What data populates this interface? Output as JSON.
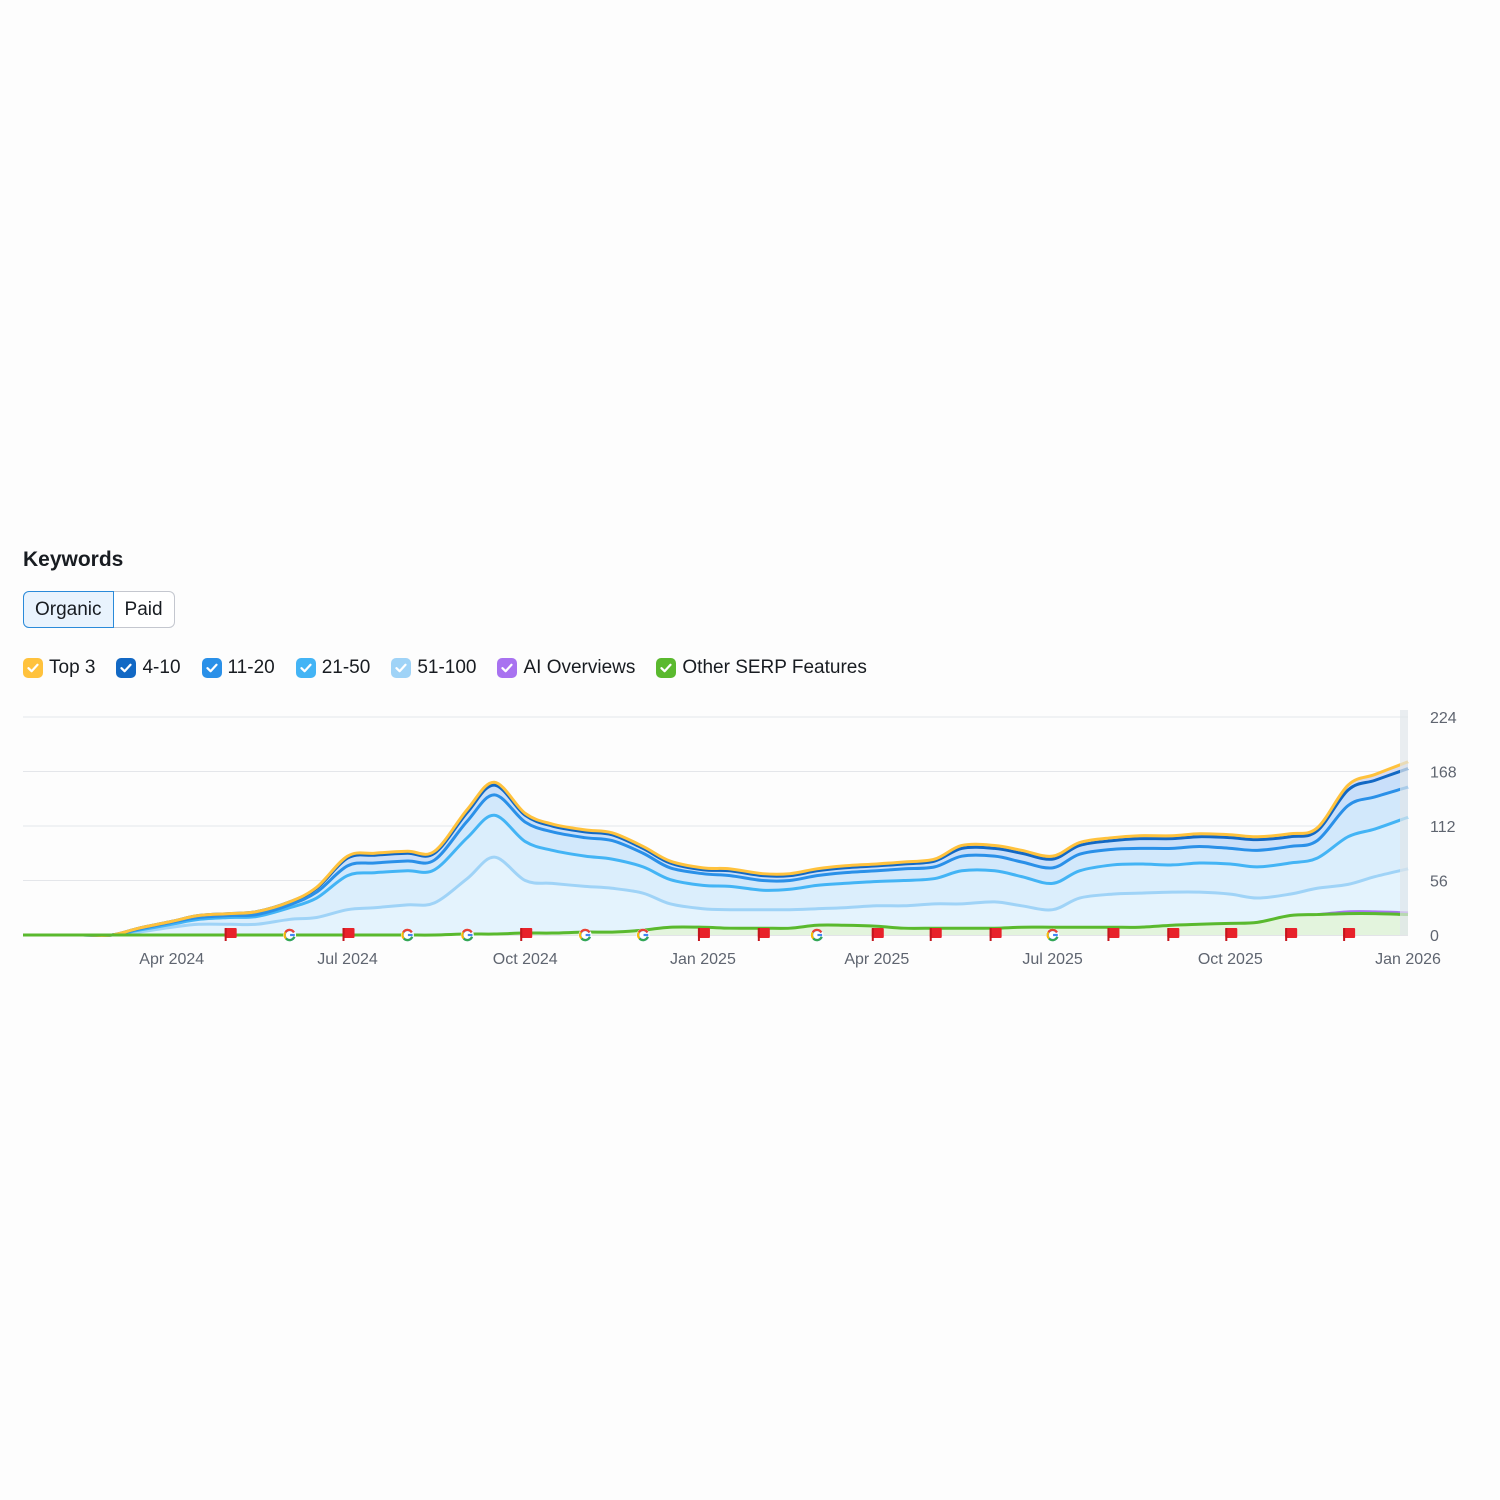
{
  "widget": {
    "title": "Keywords",
    "tabs": [
      {
        "label": "Organic",
        "selected": true
      },
      {
        "label": "Paid",
        "selected": false
      }
    ]
  },
  "legend": [
    {
      "label": "Top 3",
      "color": "#ffc23d",
      "checked": true
    },
    {
      "label": "4-10",
      "color": "#1268c4",
      "checked": true
    },
    {
      "label": "11-20",
      "color": "#2a90e8",
      "checked": true
    },
    {
      "label": "21-50",
      "color": "#43b4f5",
      "checked": true
    },
    {
      "label": "51-100",
      "color": "#9fd3f7",
      "checked": true
    },
    {
      "label": "AI Overviews",
      "color": "#a872f0",
      "checked": true
    },
    {
      "label": "Other SERP Features",
      "color": "#5ab92e",
      "checked": true
    }
  ],
  "chart_data": {
    "type": "area",
    "stacked": true,
    "x_tick_labels": [
      "Apr 2024",
      "Jul 2024",
      "Oct 2024",
      "Jan 2025",
      "Apr 2025",
      "Jul 2025",
      "Oct 2025",
      "Jan 2026"
    ],
    "y_ticks": [
      0,
      56,
      112,
      168,
      224
    ],
    "ylim": [
      0,
      224
    ],
    "y_axis_position": "right",
    "grid": true,
    "x": [
      "2024-01-15",
      "2024-02-01",
      "2024-02-15",
      "2024-03-01",
      "2024-03-15",
      "2024-04-01",
      "2024-04-15",
      "2024-05-01",
      "2024-05-15",
      "2024-06-01",
      "2024-06-15",
      "2024-07-01",
      "2024-07-15",
      "2024-08-01",
      "2024-08-15",
      "2024-09-01",
      "2024-09-15",
      "2024-10-01",
      "2024-10-15",
      "2024-11-01",
      "2024-11-15",
      "2024-12-01",
      "2024-12-15",
      "2025-01-01",
      "2025-01-15",
      "2025-02-01",
      "2025-02-15",
      "2025-03-01",
      "2025-03-15",
      "2025-04-01",
      "2025-04-15",
      "2025-05-01",
      "2025-05-15",
      "2025-06-01",
      "2025-06-15",
      "2025-07-01",
      "2025-07-15",
      "2025-08-01",
      "2025-08-15",
      "2025-09-01",
      "2025-09-15",
      "2025-10-01",
      "2025-10-15",
      "2025-11-01",
      "2025-11-15",
      "2025-12-01",
      "2025-12-15",
      "2026-01-01"
    ],
    "series": [
      {
        "name": "51-100",
        "color": "#9fd3f7",
        "values": [
          0,
          0,
          0,
          0,
          3,
          8,
          11,
          11,
          11,
          16,
          18,
          26,
          28,
          31,
          33,
          58,
          80,
          56,
          53,
          50,
          48,
          43,
          32,
          27,
          26,
          26,
          26,
          27,
          28,
          30,
          30,
          32,
          32,
          34,
          30,
          26,
          38,
          42,
          43,
          44,
          44,
          42,
          38,
          42,
          48,
          52,
          60,
          68
        ]
      },
      {
        "name": "21-50",
        "color": "#43b4f5",
        "values": [
          0,
          0,
          0,
          0,
          2,
          3,
          5,
          7,
          8,
          12,
          20,
          35,
          36,
          35,
          34,
          42,
          43,
          40,
          34,
          31,
          30,
          27,
          25,
          24,
          24,
          20,
          21,
          24,
          25,
          25,
          26,
          26,
          34,
          32,
          30,
          27,
          28,
          30,
          30,
          28,
          30,
          31,
          32,
          32,
          31,
          49,
          49,
          53
        ]
      },
      {
        "name": "11-20",
        "color": "#2a90e8",
        "values": [
          0,
          0,
          0,
          0,
          1,
          2,
          2,
          2,
          2,
          3,
          6,
          10,
          10,
          10,
          10,
          17,
          21,
          20,
          19,
          19,
          19,
          14,
          12,
          12,
          11,
          10,
          9,
          10,
          11,
          11,
          12,
          12,
          15,
          15,
          15,
          16,
          17,
          16,
          16,
          17,
          17,
          16,
          17,
          17,
          18,
          32,
          33,
          31
        ]
      },
      {
        "name": "4-10",
        "color": "#1268c4",
        "values": [
          0,
          0,
          0,
          0,
          1,
          1,
          2,
          2,
          3,
          3,
          4,
          8,
          8,
          8,
          7,
          9,
          10,
          7,
          6,
          6,
          6,
          5,
          5,
          4,
          5,
          5,
          5,
          5,
          5,
          5,
          5,
          6,
          8,
          8,
          9,
          9,
          9,
          9,
          10,
          10,
          10,
          11,
          11,
          10,
          10,
          16,
          17,
          19
        ]
      },
      {
        "name": "Top 3",
        "color": "#ffc23d",
        "values": [
          0,
          0,
          0,
          0,
          0,
          0,
          0,
          0,
          0,
          0,
          1,
          2,
          2,
          2,
          2,
          3,
          3,
          2,
          2,
          2,
          2,
          2,
          2,
          2,
          2,
          2,
          2,
          2,
          2,
          2,
          2,
          2,
          3,
          3,
          3,
          3,
          3,
          3,
          3,
          3,
          3,
          3,
          3,
          3,
          3,
          5,
          6,
          7
        ]
      }
    ],
    "overlay_series": [
      {
        "name": "AI Overviews",
        "color": "#a872f0",
        "values": [
          0,
          0,
          0,
          0,
          0,
          0,
          0,
          0,
          0,
          0,
          0,
          0,
          0,
          0,
          0,
          0,
          0,
          0,
          0,
          0,
          0,
          0,
          0,
          0,
          0,
          0,
          0,
          0,
          0,
          0,
          0,
          0,
          0,
          0,
          0,
          0,
          0,
          0,
          0,
          0,
          0,
          0,
          0,
          0,
          0,
          24,
          24,
          23
        ]
      },
      {
        "name": "Other SERP Features",
        "color": "#5ab92e",
        "values": [
          0,
          0,
          0,
          0,
          0,
          0,
          0,
          0,
          0,
          0,
          0,
          0,
          0,
          0,
          0,
          1,
          1,
          2,
          2,
          3,
          3,
          5,
          8,
          8,
          7,
          7,
          7,
          10,
          10,
          9,
          7,
          7,
          7,
          7,
          8,
          8,
          8,
          8,
          8,
          10,
          11,
          12,
          13,
          20,
          21,
          22,
          22,
          21
        ]
      }
    ],
    "event_markers": [
      {
        "date": "2024-05-01",
        "type": "flag"
      },
      {
        "date": "2024-06-01",
        "type": "google"
      },
      {
        "date": "2024-07-01",
        "type": "flag"
      },
      {
        "date": "2024-08-01",
        "type": "google"
      },
      {
        "date": "2024-09-01",
        "type": "google"
      },
      {
        "date": "2024-10-01",
        "type": "flag"
      },
      {
        "date": "2024-11-01",
        "type": "google"
      },
      {
        "date": "2024-12-01",
        "type": "google"
      },
      {
        "date": "2025-01-01",
        "type": "flag"
      },
      {
        "date": "2025-02-01",
        "type": "flag"
      },
      {
        "date": "2025-03-01",
        "type": "google"
      },
      {
        "date": "2025-04-01",
        "type": "flag"
      },
      {
        "date": "2025-05-01",
        "type": "flag"
      },
      {
        "date": "2025-06-01",
        "type": "flag"
      },
      {
        "date": "2025-07-01",
        "type": "google"
      },
      {
        "date": "2025-08-01",
        "type": "flag"
      },
      {
        "date": "2025-09-01",
        "type": "flag"
      },
      {
        "date": "2025-10-01",
        "type": "flag"
      },
      {
        "date": "2025-11-01",
        "type": "flag"
      },
      {
        "date": "2025-12-01",
        "type": "flag"
      }
    ]
  }
}
